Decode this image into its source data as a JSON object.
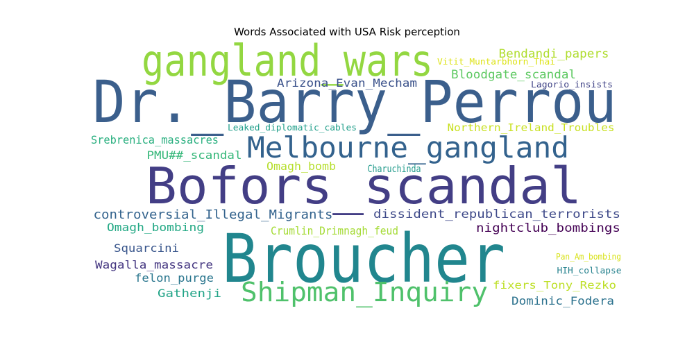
{
  "chart_data": {
    "type": "wordcloud",
    "title": "Words Associated with USA Risk perception",
    "words": [
      {
        "text": "Dr._Barry_Perrou",
        "color": "#3b5f8c"
      },
      {
        "text": "Broucher",
        "color": "#21868e"
      },
      {
        "text": "Bofors_scandal",
        "color": "#433e85"
      },
      {
        "text": "gangland_wars",
        "color": "#93d741"
      },
      {
        "text": "Melbourne_gangland",
        "color": "#33628d"
      },
      {
        "text": "Shipman_Inquiry",
        "color": "#4fc16b"
      },
      {
        "text": "Bendandi_papers",
        "color": "#b0dd2f"
      },
      {
        "text": "Vitit_Muntarbhorn_Thai",
        "color": "#dde318"
      },
      {
        "text": "Bloodgate_scandal",
        "color": "#5ec962"
      },
      {
        "text": "Arizona_Evan_Mecham",
        "color": "#3b528b"
      },
      {
        "text": "Lagorio_insists",
        "color": "#414487"
      },
      {
        "text": "Leaked_diplomatic_cables",
        "color": "#1f9e89"
      },
      {
        "text": "Northern_Ireland_Troubles",
        "color": "#c8e020"
      },
      {
        "text": "Srebrenica_massacres",
        "color": "#29af7f"
      },
      {
        "text": "PMU##_scandal",
        "color": "#35b779"
      },
      {
        "text": "Omagh_bomb",
        "color": "#b5de2b"
      },
      {
        "text": "Charuchinda",
        "color": "#1f9a8a"
      },
      {
        "text": "controversial_Illegal_Migrants",
        "color": "#33638d"
      },
      {
        "text": "dissident_republican_terrorists",
        "color": "#3e4989"
      },
      {
        "text": "Omagh_bombing",
        "color": "#22a884"
      },
      {
        "text": "Crumlin_Drimnagh_feud",
        "color": "#a5db36"
      },
      {
        "text": "nightclub_bombings",
        "color": "#440154"
      },
      {
        "text": "Squarcini",
        "color": "#39568c"
      },
      {
        "text": "Pan_Am_bombing",
        "color": "#d8e219"
      },
      {
        "text": "Wagalla_massacre",
        "color": "#453781"
      },
      {
        "text": "HIH_collapse",
        "color": "#26828e"
      },
      {
        "text": "felon_purge",
        "color": "#2a768e"
      },
      {
        "text": "fixers_Tony_Rezko",
        "color": "#bddf26"
      },
      {
        "text": "Gathenji",
        "color": "#20a386"
      },
      {
        "text": "Dominic_Fodera",
        "color": "#2c728e"
      }
    ]
  }
}
